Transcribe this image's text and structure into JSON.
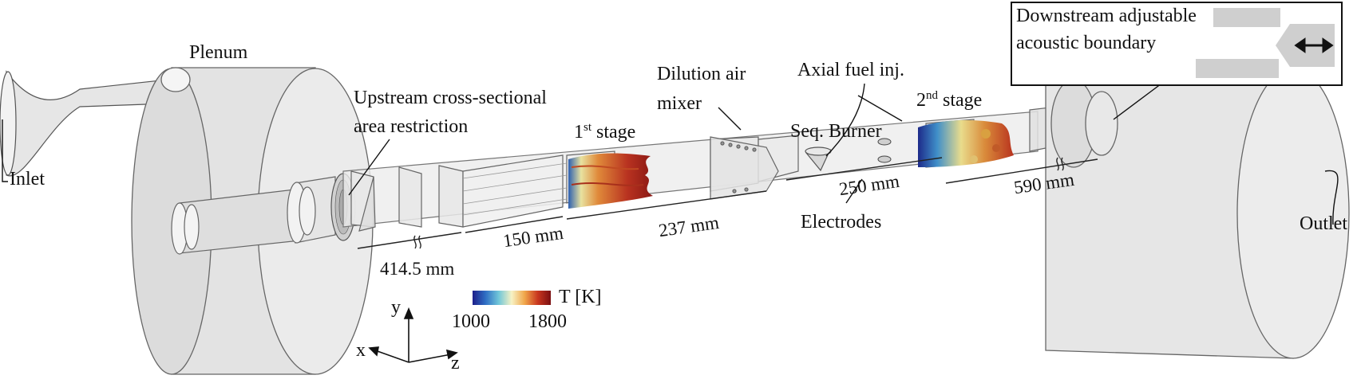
{
  "labels": {
    "plenum": "Plenum",
    "inlet": "Inlet",
    "outlet": "Outlet",
    "restriction_line1": "Upstream cross-sectional",
    "restriction_line2": "area restriction",
    "first_stage_num": "1",
    "first_stage_sup": "st",
    "first_stage_word": "stage",
    "dilution_line1": "Dilution air",
    "dilution_line2": "mixer",
    "axial_fuel": "Axial fuel inj.",
    "seq_burner": "Seq. Burner",
    "second_stage_num": "2",
    "second_stage_sup": "nd",
    "second_stage_word": "stage",
    "electrodes": "Electrodes",
    "boundary_line1": "Downstream adjustable",
    "boundary_line2": "acoustic boundary"
  },
  "dimensions": {
    "d414": "414.5 mm",
    "d150": "150 mm",
    "d237": "237 mm",
    "d250": "250 mm",
    "d590": "590 mm"
  },
  "colorbar": {
    "label": "T [K]",
    "min": "1000",
    "max": "1800",
    "colors": [
      "#1d1f8a",
      "#2f6fc4",
      "#70c6d9",
      "#f7f2c4",
      "#f0a64a",
      "#c9361f",
      "#7a0f12"
    ]
  },
  "axes": {
    "x": "x",
    "y": "y",
    "z": "z"
  },
  "boundary_icon": "double-arrow-icon"
}
